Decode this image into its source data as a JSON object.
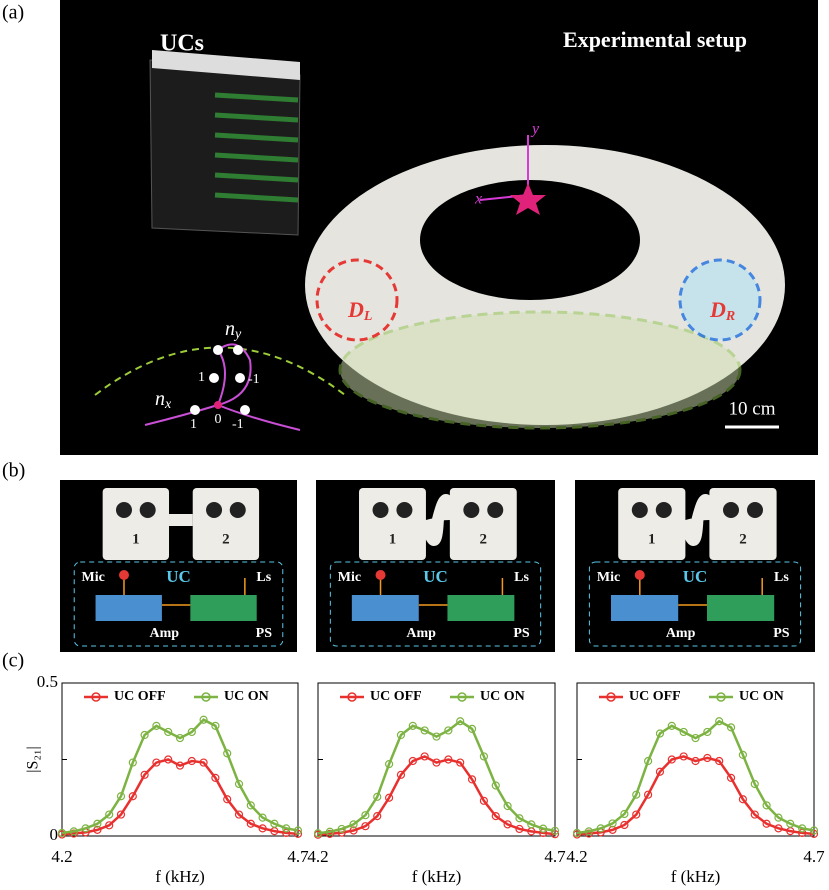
{
  "figure": {
    "panel_labels": [
      "(a)",
      "(b)",
      "(c)"
    ],
    "setup": {
      "title": "Experimental setup",
      "ucs": "UCs",
      "dl": {
        "main": "D",
        "sub": "L"
      },
      "dr": {
        "main": "D",
        "sub": "R"
      },
      "ring_x": "x",
      "ring_y": "y",
      "ny": {
        "main": "n",
        "sub": "y"
      },
      "nx": {
        "main": "n",
        "sub": "x"
      },
      "lattice_numbers": [
        "1",
        "-1",
        "0",
        "1",
        "-1"
      ],
      "scale_bar": "10 cm"
    },
    "unit": {
      "n1": "1",
      "n2": "2",
      "mic": "Mic",
      "uc": "UC",
      "ls": "Ls",
      "amp": "Amp",
      "ps": "PS"
    }
  },
  "chart_data": [
    {
      "type": "line",
      "ylabel": "|S₂₁|",
      "xlabel": "f (kHz)",
      "x": [
        4.2,
        4.225,
        4.25,
        4.275,
        4.3,
        4.325,
        4.35,
        4.375,
        4.4,
        4.425,
        4.45,
        4.475,
        4.5,
        4.525,
        4.55,
        4.575,
        4.6,
        4.625,
        4.65,
        4.675,
        4.7
      ],
      "series": [
        {
          "name": "UC OFF",
          "color": "#e8312f",
          "values": [
            0.005,
            0.008,
            0.012,
            0.02,
            0.035,
            0.07,
            0.13,
            0.2,
            0.24,
            0.25,
            0.23,
            0.245,
            0.24,
            0.19,
            0.12,
            0.07,
            0.04,
            0.025,
            0.016,
            0.01,
            0.007
          ]
        },
        {
          "name": "UC ON",
          "color": "#7cb342",
          "values": [
            0.01,
            0.015,
            0.025,
            0.04,
            0.07,
            0.13,
            0.24,
            0.33,
            0.36,
            0.34,
            0.32,
            0.34,
            0.38,
            0.36,
            0.27,
            0.17,
            0.1,
            0.06,
            0.04,
            0.025,
            0.018
          ]
        }
      ],
      "xlim": [
        4.2,
        4.7
      ],
      "ylim": [
        0,
        0.5
      ],
      "xticks": [
        4.2,
        4.7
      ],
      "yticks": [
        0,
        0.5
      ],
      "ytick_marks": [
        0.25
      ]
    },
    {
      "type": "line",
      "xlabel": "f (kHz)",
      "x": [
        4.2,
        4.225,
        4.25,
        4.275,
        4.3,
        4.325,
        4.35,
        4.375,
        4.4,
        4.425,
        4.45,
        4.475,
        4.5,
        4.525,
        4.55,
        4.575,
        4.6,
        4.625,
        4.65,
        4.675,
        4.7
      ],
      "series": [
        {
          "name": "UC OFF",
          "color": "#e8312f",
          "values": [
            0.004,
            0.007,
            0.011,
            0.018,
            0.032,
            0.065,
            0.125,
            0.2,
            0.245,
            0.26,
            0.24,
            0.25,
            0.24,
            0.185,
            0.115,
            0.065,
            0.038,
            0.023,
            0.015,
            0.01,
            0.006
          ]
        },
        {
          "name": "UC ON",
          "color": "#7cb342",
          "values": [
            0.009,
            0.014,
            0.023,
            0.038,
            0.068,
            0.128,
            0.235,
            0.33,
            0.36,
            0.345,
            0.325,
            0.345,
            0.375,
            0.35,
            0.26,
            0.165,
            0.098,
            0.058,
            0.038,
            0.024,
            0.017
          ]
        }
      ],
      "xlim": [
        4.2,
        4.7
      ],
      "ylim": [
        0,
        0.5
      ],
      "xticks": [
        4.2,
        4.7
      ],
      "ytick_marks": [
        0.25
      ]
    },
    {
      "type": "line",
      "xlabel": "f (kHz)",
      "x": [
        4.2,
        4.225,
        4.25,
        4.275,
        4.3,
        4.325,
        4.35,
        4.375,
        4.4,
        4.425,
        4.45,
        4.475,
        4.5,
        4.525,
        4.55,
        4.575,
        4.6,
        4.625,
        4.65,
        4.675,
        4.7
      ],
      "series": [
        {
          "name": "UC OFF",
          "color": "#e8312f",
          "values": [
            0.005,
            0.008,
            0.012,
            0.02,
            0.036,
            0.07,
            0.135,
            0.21,
            0.25,
            0.26,
            0.245,
            0.255,
            0.245,
            0.19,
            0.12,
            0.07,
            0.04,
            0.025,
            0.016,
            0.01,
            0.007
          ]
        },
        {
          "name": "UC ON",
          "color": "#7cb342",
          "values": [
            0.01,
            0.015,
            0.025,
            0.041,
            0.072,
            0.135,
            0.245,
            0.335,
            0.36,
            0.34,
            0.32,
            0.34,
            0.375,
            0.355,
            0.265,
            0.17,
            0.1,
            0.06,
            0.04,
            0.025,
            0.018
          ]
        }
      ],
      "xlim": [
        4.2,
        4.7
      ],
      "ylim": [
        0,
        0.5
      ],
      "xticks": [
        4.2,
        4.7
      ],
      "ytick_marks": [
        0.25
      ]
    }
  ]
}
